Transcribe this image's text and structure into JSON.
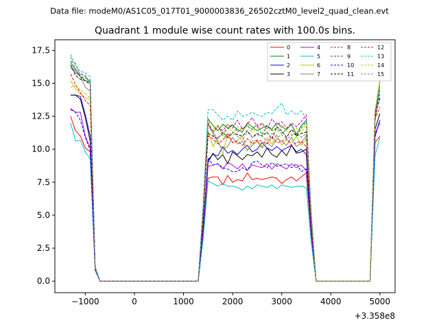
{
  "chart_data": {
    "type": "line",
    "suptitle": "Data file: modeM0/AS1C05_017T01_9000003836_26502cztM0_level2_quad_clean.evt",
    "title": "Quadrant 1 module wise count rates with 100.0s bins.",
    "xlabel": "",
    "ylabel": "",
    "x_offset_label": "+3.358e8",
    "xlim": [
      -1620,
      5310
    ],
    "ylim": [
      -0.875,
      18.3
    ],
    "xticks": [
      -1000,
      0,
      1000,
      2000,
      3000,
      4000,
      5000
    ],
    "xtick_labels": [
      "−1000",
      "0",
      "1000",
      "2000",
      "3000",
      "4000",
      "5000"
    ],
    "yticks": [
      0.0,
      2.5,
      5.0,
      7.5,
      10.0,
      12.5,
      15.0,
      17.5
    ],
    "ytick_labels": [
      "0.0",
      "2.5",
      "5.0",
      "7.5",
      "10.0",
      "12.5",
      "15.0",
      "17.5"
    ],
    "grid": false,
    "legend_position": "top-right",
    "x": [
      -1300,
      -1200,
      -1100,
      -1000,
      -900,
      -800,
      -700,
      1300,
      1400,
      1500,
      1600,
      1700,
      1800,
      1900,
      2000,
      2100,
      2200,
      2300,
      2400,
      2500,
      2600,
      2700,
      2800,
      2900,
      3000,
      3100,
      3200,
      3300,
      3400,
      3500,
      3600,
      3700,
      4800,
      4900,
      5000
    ],
    "series": [
      {
        "name": "0",
        "color": "#ff0000",
        "dash": "solid",
        "values": [
          12.5,
          11.4,
          11.0,
          10.1,
          9.8,
          0.8,
          0,
          0,
          3.5,
          7.8,
          7.9,
          7.9,
          7.3,
          8.0,
          7.5,
          7.7,
          7.6,
          8.2,
          7.7,
          7.8,
          7.7,
          7.8,
          7.9,
          7.8,
          7.4,
          7.7,
          7.9,
          7.6,
          7.9,
          8.2,
          3.5,
          0,
          0,
          10.5,
          11.0
        ]
      },
      {
        "name": "1",
        "color": "#008000",
        "dash": "solid",
        "values": [
          16.6,
          16.0,
          15.5,
          15.2,
          15.1,
          1.0,
          0,
          0,
          5.5,
          12.3,
          11.8,
          11.4,
          11.9,
          11.6,
          11.8,
          11.5,
          11.3,
          12.0,
          11.7,
          11.4,
          11.6,
          11.8,
          11.5,
          12.0,
          11.7,
          11.5,
          11.9,
          11.1,
          11.8,
          12.2,
          5.0,
          0,
          0,
          12.5,
          15.2
        ]
      },
      {
        "name": "2",
        "color": "#0000ff",
        "dash": "solid",
        "values": [
          14.1,
          14.1,
          14.0,
          12.6,
          11.0,
          1.0,
          0,
          0,
          4.0,
          9.2,
          9.6,
          9.5,
          10.2,
          9.7,
          9.9,
          9.6,
          10.0,
          10.3,
          9.8,
          10.0,
          10.5,
          10.1,
          9.9,
          10.2,
          9.9,
          10.1,
          10.3,
          9.8,
          10.0,
          9.6,
          4.0,
          0,
          0,
          11.0,
          12.2
        ]
      },
      {
        "name": "3",
        "color": "#000000",
        "dash": "solid",
        "values": [
          14.1,
          14.1,
          13.8,
          12.4,
          10.6,
          0.9,
          0,
          0,
          4.3,
          9.0,
          9.7,
          9.2,
          9.6,
          8.9,
          9.8,
          9.5,
          9.2,
          9.6,
          9.5,
          9.8,
          9.4,
          10.1,
          9.6,
          9.4,
          9.9,
          9.5,
          10.3,
          9.7,
          9.8,
          10.0,
          4.2,
          0,
          0,
          11.5,
          12.7
        ]
      },
      {
        "name": "4",
        "color": "#bf00bf",
        "dash": "solid",
        "values": [
          13.1,
          12.8,
          12.8,
          11.0,
          10.1,
          0.9,
          0,
          0,
          3.9,
          8.7,
          8.8,
          8.9,
          8.5,
          9.0,
          8.8,
          8.5,
          8.9,
          8.4,
          8.8,
          8.7,
          8.6,
          8.9,
          8.5,
          8.9,
          8.7,
          8.5,
          8.9,
          8.6,
          8.8,
          8.4,
          3.8,
          0,
          0,
          11.2,
          12.0
        ]
      },
      {
        "name": "5",
        "color": "#00bfbf",
        "dash": "solid",
        "values": [
          12.0,
          10.6,
          10.7,
          9.8,
          9.3,
          0.8,
          0,
          0,
          3.2,
          7.6,
          7.4,
          7.2,
          7.4,
          7.2,
          7.2,
          7.1,
          6.9,
          7.2,
          7.0,
          7.3,
          7.2,
          7.1,
          7.3,
          7.0,
          7.3,
          7.2,
          7.1,
          7.2,
          7.2,
          7.1,
          3.0,
          0,
          0,
          9.5,
          10.9
        ]
      },
      {
        "name": "6",
        "color": "#bfbf00",
        "dash": "solid",
        "values": [
          15.2,
          14.6,
          14.2,
          13.9,
          13.8,
          1.0,
          0,
          0,
          5.0,
          11.4,
          10.2,
          10.8,
          9.6,
          11.2,
          10.5,
          10.7,
          11.0,
          9.9,
          10.6,
          10.7,
          10.2,
          10.9,
          10.4,
          11.1,
          10.3,
          10.7,
          10.5,
          11.0,
          10.3,
          10.8,
          4.6,
          0,
          0,
          12.0,
          15.1
        ]
      },
      {
        "name": "7",
        "color": "#808080",
        "dash": "solid",
        "values": [
          16.4,
          15.8,
          15.5,
          14.7,
          14.4,
          1.0,
          0,
          0,
          5.6,
          12.0,
          11.2,
          10.5,
          10.0,
          10.2,
          10.9,
          10.4,
          10.6,
          9.9,
          10.3,
          10.6,
          10.1,
          10.5,
          10.2,
          10.8,
          10.6,
          10.3,
          10.9,
          10.2,
          10.5,
          11.0,
          4.8,
          0,
          0,
          12.5,
          14.8
        ]
      },
      {
        "name": "8",
        "color": "#ff0000",
        "dash": "dashed",
        "values": [
          15.7,
          14.9,
          14.3,
          13.7,
          13.3,
          1.0,
          0,
          0,
          5.0,
          11.0,
          10.8,
          10.4,
          10.7,
          11.2,
          10.5,
          10.6,
          10.3,
          10.8,
          10.4,
          10.7,
          10.6,
          10.4,
          10.9,
          10.5,
          10.6,
          10.8,
          10.3,
          10.5,
          10.6,
          10.2,
          4.6,
          0,
          0,
          12.3,
          13.2
        ]
      },
      {
        "name": "9",
        "color": "#008000",
        "dash": "dashed",
        "values": [
          16.7,
          16.5,
          15.5,
          15.4,
          15.2,
          1.1,
          0,
          0,
          5.6,
          11.9,
          11.4,
          11.8,
          11.2,
          11.5,
          11.9,
          11.3,
          11.6,
          11.8,
          11.5,
          11.9,
          11.1,
          11.8,
          11.4,
          11.6,
          11.2,
          11.5,
          11.9,
          11.0,
          11.6,
          12.1,
          5.1,
          0,
          0,
          12.8,
          14.5
        ]
      },
      {
        "name": "10",
        "color": "#0000ff",
        "dash": "dashed",
        "values": [
          13.0,
          12.8,
          12.2,
          10.9,
          9.9,
          0.9,
          0,
          0,
          4.0,
          9.3,
          8.8,
          8.9,
          8.6,
          8.5,
          8.3,
          8.3,
          8.6,
          8.4,
          9.0,
          9.1,
          8.8,
          8.6,
          9.0,
          8.7,
          8.8,
          8.9,
          8.6,
          8.9,
          8.3,
          8.5,
          3.9,
          0,
          0,
          10.9,
          12.2
        ]
      },
      {
        "name": "11",
        "color": "#000000",
        "dash": "dashed",
        "values": [
          16.4,
          15.6,
          15.3,
          15.2,
          14.9,
          1.0,
          0,
          0,
          5.2,
          11.2,
          11.0,
          10.8,
          11.3,
          10.9,
          11.3,
          11.1,
          11.0,
          11.4,
          10.9,
          11.2,
          11.0,
          11.3,
          10.8,
          11.7,
          11.4,
          10.9,
          11.5,
          11.0,
          11.2,
          11.3,
          5.0,
          0,
          0,
          12.4,
          13.9
        ]
      },
      {
        "name": "12",
        "color": "#bf00bf",
        "dash": "dashed",
        "values": [
          16.2,
          15.8,
          15.7,
          15.6,
          15.0,
          1.0,
          0,
          0,
          5.4,
          12.0,
          11.2,
          11.7,
          11.4,
          11.9,
          11.6,
          12.2,
          11.5,
          11.9,
          12.4,
          11.7,
          12.0,
          11.5,
          12.3,
          11.8,
          12.1,
          11.6,
          12.0,
          11.7,
          12.1,
          12.6,
          5.2,
          0,
          0,
          12.6,
          14.2
        ]
      },
      {
        "name": "13",
        "color": "#00bfbf",
        "dash": "dashed",
        "values": [
          17.2,
          16.4,
          15.9,
          15.8,
          15.5,
          1.1,
          0,
          0,
          5.8,
          13.0,
          13.0,
          12.6,
          12.2,
          12.5,
          12.2,
          12.9,
          12.5,
          12.6,
          12.8,
          12.6,
          12.5,
          12.8,
          12.7,
          13.1,
          13.5,
          12.6,
          12.9,
          12.6,
          12.9,
          12.3,
          5.4,
          0,
          0,
          13.0,
          14.7
        ]
      },
      {
        "name": "14",
        "color": "#bfbf00",
        "dash": "dashed",
        "values": [
          14.7,
          14.8,
          14.5,
          14.2,
          13.9,
          1.0,
          0,
          0,
          5.2,
          12.2,
          11.3,
          11.8,
          11.0,
          11.9,
          11.2,
          11.7,
          11.4,
          11.8,
          11.3,
          11.6,
          11.9,
          11.2,
          11.7,
          11.3,
          11.8,
          11.4,
          11.1,
          11.6,
          11.3,
          11.9,
          5.0,
          0,
          0,
          12.9,
          15.3
        ]
      },
      {
        "name": "15",
        "color": "#808080",
        "dash": "dashed",
        "values": [
          17.0,
          16.1,
          15.7,
          15.5,
          15.0,
          1.0,
          0,
          0,
          5.3,
          11.8,
          11.2,
          10.9,
          11.1,
          10.8,
          11.2,
          11.0,
          10.7,
          11.3,
          10.9,
          11.1,
          11.0,
          10.6,
          11.2,
          10.9,
          11.1,
          10.8,
          11.0,
          11.3,
          10.9,
          11.2,
          4.9,
          0,
          0,
          12.1,
          14.3
        ]
      }
    ]
  }
}
